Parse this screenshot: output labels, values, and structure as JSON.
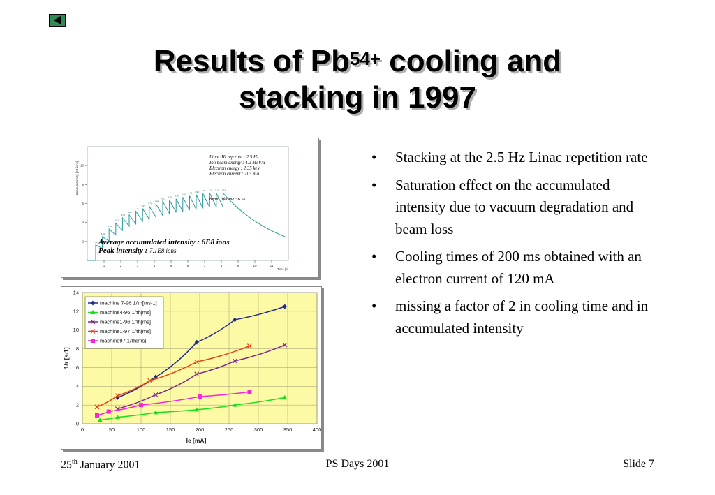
{
  "slide": {
    "title_part1": "Results of Pb",
    "title_sup": "54+",
    "title_part2": " cooling and",
    "title_line2": "stacking in 1997",
    "bullets": [
      "Stacking at the 2.5 Hz Linac repetition rate",
      "Saturation effect on the accumulated intensity due to vacuum degradation and beam loss",
      "Cooling times of 200 ms obtained with an electron current of 120 mA",
      "missing a factor of 2 in cooling time and in accumulated intensity"
    ],
    "footer": {
      "date_day": "25",
      "date_sup": "th",
      "date_rest": " January 2001",
      "center": "PS Days 2001",
      "right": "Slide 7"
    },
    "nav_icon": "back-arrow-icon"
  },
  "chart_data": [
    {
      "type": "line",
      "ylabel": "Beam Intensity [E8 ions]",
      "xlabel": "Time [s]",
      "x_ticks": [
        "1",
        "2",
        "3",
        "4",
        "5",
        "6",
        "7",
        "8",
        "9",
        "10",
        "11"
      ],
      "y_ticks": [
        "2",
        "4",
        "6",
        "8",
        "10"
      ],
      "xlim": [
        0,
        12
      ],
      "ylim": [
        0,
        12
      ],
      "annotations": [
        "Linac III rep rate : 2.5 Hz",
        "Ion beam energy : 4.2 MeV/u",
        "Electron energy : 2.35 keV",
        "Electron current : 105 mA"
      ],
      "lifetime_label": "beam lifetime : 6.5s",
      "summary_line1": "Average accumulated intensity : 6E8 ions",
      "summary_line2_a": "Peak intensity : ",
      "summary_line2_b": "7.1E8 ions",
      "peak_labels": [
        "1.63",
        "2.50",
        "3.31",
        "3.93",
        "4.50",
        "4.80",
        "5.17",
        "5.45",
        "5.70",
        "5.94",
        "6.22",
        "6.37",
        "6.50",
        "6.66",
        "6.80",
        "6.93",
        "7.05",
        "7.10",
        "7.10",
        "7.10"
      ],
      "stacking": {
        "pulses": 20,
        "start": 0.5,
        "interval": 0.4,
        "peaks": [
          1.63,
          2.5,
          3.31,
          3.93,
          4.5,
          4.8,
          5.17,
          5.45,
          5.7,
          5.94,
          6.22,
          6.37,
          6.5,
          6.66,
          6.8,
          6.93,
          7.05,
          7.1,
          7.1,
          7.1
        ],
        "decay_end": 11.8,
        "decay_end_value": 2.5
      }
    },
    {
      "type": "line",
      "xlabel": "Ie [mA]",
      "ylabel": "1/τ [s-1]",
      "xlim": [
        0,
        400
      ],
      "ylim": [
        0,
        14
      ],
      "x_ticks": [
        0,
        50,
        100,
        150,
        200,
        250,
        300,
        350,
        400
      ],
      "y_ticks": [
        0,
        2,
        4,
        6,
        8,
        10,
        12,
        14
      ],
      "grid": true,
      "legend_position": "top-left",
      "series": [
        {
          "name": "machine 7-96 1/τh[ms-1]",
          "color": "#1f2a8c",
          "marker": "diamond",
          "x": [
            60,
            125,
            195,
            260,
            345
          ],
          "y": [
            2.8,
            5.0,
            8.7,
            11.1,
            12.5
          ]
        },
        {
          "name": "machine4-96:1/τh[ms]",
          "color": "#18e018",
          "marker": "triangle",
          "x": [
            30,
            60,
            125,
            195,
            260,
            345
          ],
          "y": [
            0.4,
            0.7,
            1.2,
            1.5,
            2.0,
            2.8
          ]
        },
        {
          "name": "machine1-96:1/τh[ms]",
          "color": "#7a2a8a",
          "marker": "x",
          "x": [
            60,
            125,
            195,
            260,
            345
          ],
          "y": [
            1.6,
            3.1,
            5.3,
            6.7,
            8.4
          ]
        },
        {
          "name": "machine1-97:1/τh[ms]",
          "color": "#e8401a",
          "marker": "x",
          "x": [
            25,
            60,
            115,
            195,
            285
          ],
          "y": [
            1.8,
            3.0,
            4.6,
            6.6,
            8.3
          ]
        },
        {
          "name": "machine97:1/τh[ms]",
          "color": "#ff20d8",
          "marker": "square",
          "x": [
            25,
            45,
            100,
            200,
            285
          ],
          "y": [
            0.9,
            1.3,
            2.0,
            2.9,
            3.4
          ]
        }
      ]
    }
  ]
}
